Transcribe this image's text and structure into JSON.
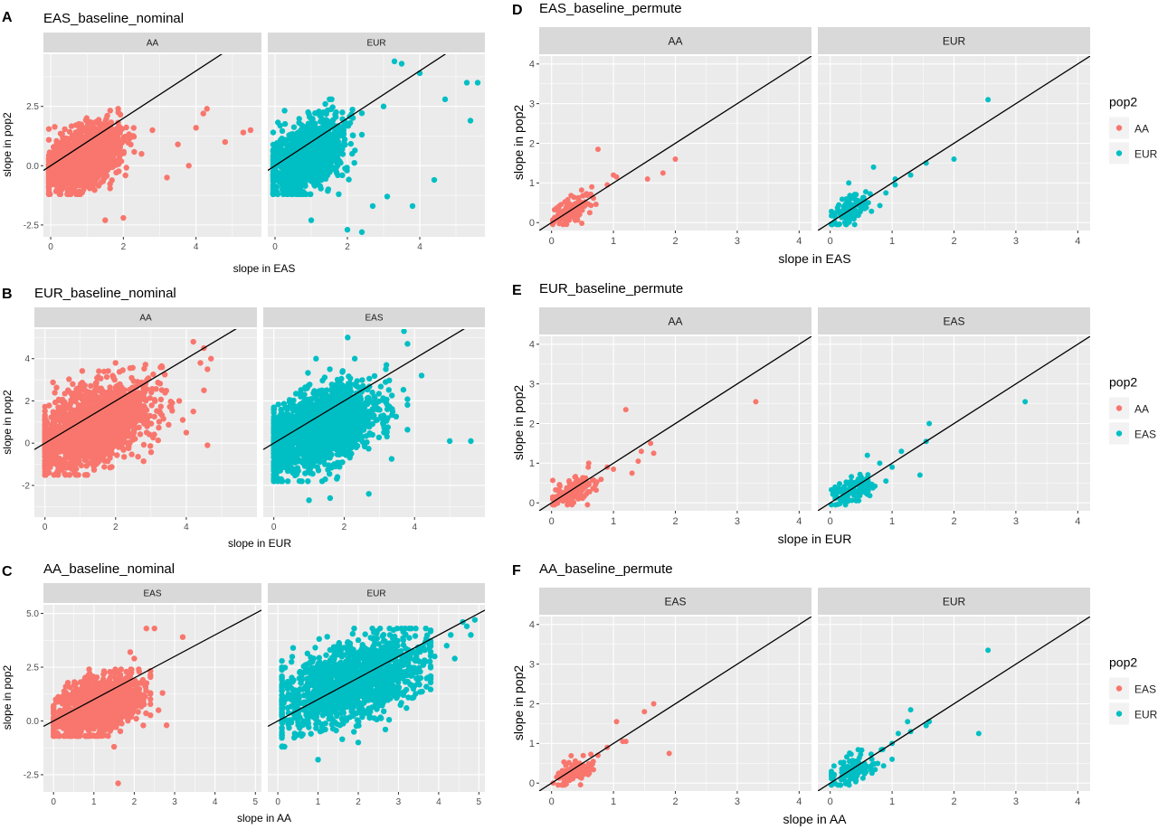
{
  "colors": {
    "red": "#F8766D",
    "teal": "#00BFC4",
    "panel_bg": "#EBEBEB",
    "strip_bg": "#D9D9D9",
    "grid": "#FFFFFF",
    "line": "#000000"
  },
  "chart_data": [
    {
      "id": "A",
      "tag": "A",
      "title": "EAS_baseline_nominal",
      "type": "scatter",
      "xlabel": "slope in EAS",
      "ylabel": "slope in pop2",
      "xlim": [
        -0.2,
        5.8
      ],
      "ylim": [
        -3.0,
        4.7
      ],
      "xticks": [
        {
          "v": 0,
          "t": "0"
        },
        {
          "v": 2,
          "t": "2"
        },
        {
          "v": 4,
          "t": "4"
        }
      ],
      "yticks": [
        {
          "v": -2.5,
          "t": "-2.5"
        },
        {
          "v": 0,
          "t": "0.0"
        },
        {
          "v": 2.5,
          "t": "2.5"
        }
      ],
      "grid": true,
      "reference_line": "y = x",
      "facets": [
        {
          "label": "AA",
          "color": "red",
          "cloud": {
            "cx": 0.9,
            "cy": 0.3,
            "sx": 0.5,
            "sy": 0.7,
            "xmin": -0.05,
            "xmax": 2.3,
            "ymin": -1.2,
            "ymax": 2.4
          },
          "outliers": [
            [
              4.3,
              2.4
            ],
            [
              4.2,
              2.2
            ],
            [
              4.0,
              1.6
            ],
            [
              5.3,
              1.4
            ],
            [
              5.5,
              1.5
            ],
            [
              2.0,
              -2.2
            ],
            [
              4.8,
              1.0
            ],
            [
              3.5,
              0.9
            ],
            [
              1.5,
              -2.3
            ],
            [
              2.5,
              0.5
            ],
            [
              3.2,
              -0.5
            ],
            [
              2.8,
              1.5
            ],
            [
              3.8,
              0.0
            ]
          ]
        },
        {
          "label": "EUR",
          "color": "teal",
          "cloud": {
            "cx": 0.9,
            "cy": 0.4,
            "sx": 0.5,
            "sy": 0.8,
            "xmin": -0.05,
            "xmax": 2.4,
            "ymin": -1.2,
            "ymax": 2.8
          },
          "outliers": [
            [
              3.3,
              4.4
            ],
            [
              3.5,
              4.3
            ],
            [
              4.0,
              3.9
            ],
            [
              5.3,
              3.5
            ],
            [
              5.6,
              3.5
            ],
            [
              4.4,
              -0.6
            ],
            [
              2.0,
              -2.7
            ],
            [
              2.4,
              -2.8
            ],
            [
              3.1,
              -1.3
            ],
            [
              3.8,
              -1.7
            ],
            [
              5.4,
              1.9
            ],
            [
              4.7,
              2.8
            ],
            [
              3.0,
              2.5
            ],
            [
              2.7,
              -1.7
            ],
            [
              1.0,
              -2.3
            ]
          ]
        }
      ]
    },
    {
      "id": "B",
      "tag": "B",
      "title": "EUR_baseline_nominal",
      "type": "scatter",
      "xlabel": "slope in EUR",
      "ylabel": "slope in pop2",
      "xlim": [
        -0.3,
        6.0
      ],
      "ylim": [
        -3.5,
        5.4
      ],
      "xticks": [
        {
          "v": 0,
          "t": "0"
        },
        {
          "v": 2,
          "t": "2"
        },
        {
          "v": 4,
          "t": "4"
        }
      ],
      "yticks": [
        {
          "v": -2,
          "t": "-2"
        },
        {
          "v": 0,
          "t": "0"
        },
        {
          "v": 2,
          "t": "2"
        },
        {
          "v": 4,
          "t": "4"
        }
      ],
      "grid": true,
      "reference_line": "y = x",
      "facets": [
        {
          "label": "AA",
          "color": "red",
          "cloud": {
            "cx": 1.3,
            "cy": 0.8,
            "sx": 0.8,
            "sy": 1.0,
            "xmin": 0.0,
            "xmax": 3.6,
            "ymin": -1.5,
            "ymax": 3.8
          },
          "outliers": [
            [
              4.2,
              4.8
            ],
            [
              4.5,
              4.5
            ],
            [
              4.7,
              4.0
            ],
            [
              4.6,
              3.5
            ],
            [
              4.4,
              3.8
            ],
            [
              4.6,
              -0.1
            ],
            [
              4.0,
              0.5
            ],
            [
              3.8,
              2.0
            ],
            [
              4.2,
              1.5
            ],
            [
              4.5,
              2.5
            ],
            [
              3.9,
              1.1
            ]
          ]
        },
        {
          "label": "EAS",
          "color": "teal",
          "cloud": {
            "cx": 1.3,
            "cy": 0.7,
            "sx": 0.8,
            "sy": 1.0,
            "xmin": 0.0,
            "xmax": 3.8,
            "ymin": -1.8,
            "ymax": 3.5
          },
          "outliers": [
            [
              3.7,
              5.3
            ],
            [
              3.8,
              4.7
            ],
            [
              2.1,
              5.0
            ],
            [
              5.0,
              0.1
            ],
            [
              5.6,
              0.1
            ],
            [
              1.6,
              -2.6
            ],
            [
              2.7,
              -2.4
            ],
            [
              1.0,
              -2.7
            ],
            [
              4.2,
              3.2
            ],
            [
              2.3,
              4.0
            ],
            [
              3.2,
              3.7
            ],
            [
              1.2,
              4.0
            ]
          ]
        }
      ]
    },
    {
      "id": "C",
      "tag": "C",
      "title": "AA_baseline_nominal",
      "type": "scatter",
      "xlabel": "slope in AA",
      "ylabel": "slope in pop2",
      "xlim": [
        -0.25,
        5.15
      ],
      "ylim": [
        -3.3,
        5.4
      ],
      "xticks": [
        {
          "v": 0,
          "t": "0"
        },
        {
          "v": 1,
          "t": "1"
        },
        {
          "v": 2,
          "t": "2"
        },
        {
          "v": 3,
          "t": "3"
        },
        {
          "v": 4,
          "t": "4"
        },
        {
          "v": 5,
          "t": "5"
        }
      ],
      "yticks": [
        {
          "v": -2.5,
          "t": "-2.5"
        },
        {
          "v": 0,
          "t": "0.0"
        },
        {
          "v": 2.5,
          "t": "2.5"
        },
        {
          "v": 5,
          "t": "5.0"
        }
      ],
      "grid": true,
      "reference_line": "y = x",
      "facets": [
        {
          "label": "EAS",
          "color": "red",
          "cloud": {
            "cx": 1.1,
            "cy": 0.7,
            "sx": 0.5,
            "sy": 0.7,
            "xmin": 0.0,
            "xmax": 2.4,
            "ymin": -0.7,
            "ymax": 2.4
          },
          "outliers": [
            [
              2.3,
              4.3
            ],
            [
              2.5,
              4.3
            ],
            [
              3.2,
              3.9
            ],
            [
              1.6,
              -2.9
            ],
            [
              2.2,
              1.8
            ],
            [
              2.6,
              0.5
            ],
            [
              2.8,
              -0.2
            ],
            [
              1.5,
              -1.2
            ],
            [
              2.7,
              1.3
            ],
            [
              1.9,
              3.2
            ],
            [
              2.0,
              2.9
            ]
          ]
        },
        {
          "label": "EUR",
          "color": "teal",
          "cloud": {
            "cx": 1.8,
            "cy": 1.8,
            "sx": 0.9,
            "sy": 1.1,
            "xmin": 0.1,
            "xmax": 3.8,
            "ymin": -1.2,
            "ymax": 4.3
          },
          "outliers": [
            [
              4.6,
              4.6
            ],
            [
              4.7,
              4.4
            ],
            [
              4.8,
              4.0
            ],
            [
              4.9,
              4.7
            ],
            [
              4.3,
              4.0
            ],
            [
              1.0,
              -1.8
            ],
            [
              2.0,
              -1.0
            ],
            [
              3.2,
              0.6
            ],
            [
              4.4,
              2.9
            ],
            [
              3.9,
              3.0
            ],
            [
              4.2,
              3.5
            ]
          ]
        }
      ]
    },
    {
      "id": "D",
      "tag": "D",
      "title": "EAS_baseline_permute",
      "type": "scatter",
      "xlabel": "slope in EAS",
      "ylabel": "slope in pop2",
      "xlim": [
        -0.2,
        4.2
      ],
      "ylim": [
        -0.2,
        4.2
      ],
      "xticks": [
        {
          "v": 0,
          "t": "0"
        },
        {
          "v": 1,
          "t": "1"
        },
        {
          "v": 2,
          "t": "2"
        },
        {
          "v": 3,
          "t": "3"
        },
        {
          "v": 4,
          "t": "4"
        }
      ],
      "yticks": [
        {
          "v": 0,
          "t": "0"
        },
        {
          "v": 1,
          "t": "1"
        },
        {
          "v": 2,
          "t": "2"
        },
        {
          "v": 3,
          "t": "3"
        },
        {
          "v": 4,
          "t": "4"
        }
      ],
      "grid": true,
      "reference_line": "y = x",
      "legend": {
        "title": "pop2",
        "items": [
          {
            "label": "AA",
            "color": "red"
          },
          {
            "label": "EUR",
            "color": "teal"
          }
        ],
        "position": "right"
      },
      "facets": [
        {
          "label": "AA",
          "color": "red",
          "cloud": {
            "cx": 0.3,
            "cy": 0.3,
            "sx": 0.15,
            "sy": 0.18,
            "xmin": 0.02,
            "xmax": 0.8,
            "ymin": -0.05,
            "ymax": 0.9
          },
          "outliers": [
            [
              0.75,
              1.85
            ],
            [
              1.0,
              1.2
            ],
            [
              1.05,
              1.15
            ],
            [
              1.55,
              1.1
            ],
            [
              1.8,
              1.25
            ],
            [
              2.0,
              1.6
            ],
            [
              0.65,
              0.9
            ],
            [
              0.9,
              0.95
            ]
          ]
        },
        {
          "label": "EUR",
          "color": "teal",
          "cloud": {
            "cx": 0.3,
            "cy": 0.3,
            "sx": 0.18,
            "sy": 0.2,
            "xmin": 0.02,
            "xmax": 0.9,
            "ymin": -0.05,
            "ymax": 1.0
          },
          "outliers": [
            [
              2.55,
              3.1
            ],
            [
              2.0,
              1.6
            ],
            [
              1.55,
              1.5
            ],
            [
              1.3,
              1.2
            ],
            [
              1.05,
              1.1
            ],
            [
              1.05,
              0.95
            ],
            [
              0.3,
              1.0
            ],
            [
              0.7,
              1.4
            ],
            [
              0.9,
              0.75
            ]
          ]
        }
      ]
    },
    {
      "id": "E",
      "tag": "E",
      "title": "EUR_baseline_permute",
      "type": "scatter",
      "xlabel": "slope in EUR",
      "ylabel": "slope in pop2",
      "xlim": [
        -0.2,
        4.2
      ],
      "ylim": [
        -0.2,
        4.2
      ],
      "xticks": [
        {
          "v": 0,
          "t": "0"
        },
        {
          "v": 1,
          "t": "1"
        },
        {
          "v": 2,
          "t": "2"
        },
        {
          "v": 3,
          "t": "3"
        },
        {
          "v": 4,
          "t": "4"
        }
      ],
      "yticks": [
        {
          "v": 0,
          "t": "0"
        },
        {
          "v": 1,
          "t": "1"
        },
        {
          "v": 2,
          "t": "2"
        },
        {
          "v": 3,
          "t": "3"
        },
        {
          "v": 4,
          "t": "4"
        }
      ],
      "grid": true,
      "reference_line": "y = x",
      "legend": {
        "title": "pop2",
        "items": [
          {
            "label": "AA",
            "color": "red"
          },
          {
            "label": "EAS",
            "color": "teal"
          }
        ],
        "position": "right"
      },
      "facets": [
        {
          "label": "AA",
          "color": "red",
          "cloud": {
            "cx": 0.35,
            "cy": 0.3,
            "sx": 0.18,
            "sy": 0.2,
            "xmin": 0.02,
            "xmax": 0.8,
            "ymin": -0.05,
            "ymax": 0.9
          },
          "outliers": [
            [
              1.2,
              2.35
            ],
            [
              3.3,
              2.55
            ],
            [
              1.6,
              1.5
            ],
            [
              1.65,
              1.25
            ],
            [
              1.45,
              1.3
            ],
            [
              1.4,
              1.05
            ],
            [
              0.9,
              0.9
            ],
            [
              1.0,
              0.85
            ],
            [
              1.3,
              0.75
            ],
            [
              0.6,
              1.0
            ]
          ]
        },
        {
          "label": "EAS",
          "color": "teal",
          "cloud": {
            "cx": 0.35,
            "cy": 0.3,
            "sx": 0.18,
            "sy": 0.18,
            "xmin": 0.02,
            "xmax": 0.9,
            "ymin": -0.05,
            "ymax": 0.9
          },
          "outliers": [
            [
              3.15,
              2.55
            ],
            [
              1.6,
              2.0
            ],
            [
              1.55,
              1.55
            ],
            [
              1.15,
              1.3
            ],
            [
              1.45,
              0.7
            ],
            [
              1.0,
              0.9
            ],
            [
              0.8,
              1.0
            ],
            [
              0.6,
              1.2
            ],
            [
              0.9,
              0.55
            ]
          ]
        }
      ]
    },
    {
      "id": "F",
      "tag": "F",
      "title": "AA_baseline_permute",
      "type": "scatter",
      "xlabel": "slope in AA",
      "ylabel": "slope in pop2",
      "xlim": [
        -0.2,
        4.2
      ],
      "ylim": [
        -0.2,
        4.2
      ],
      "xticks": [
        {
          "v": 0,
          "t": "0"
        },
        {
          "v": 1,
          "t": "1"
        },
        {
          "v": 2,
          "t": "2"
        },
        {
          "v": 3,
          "t": "3"
        },
        {
          "v": 4,
          "t": "4"
        }
      ],
      "yticks": [
        {
          "v": 0,
          "t": "0"
        },
        {
          "v": 1,
          "t": "1"
        },
        {
          "v": 2,
          "t": "2"
        },
        {
          "v": 3,
          "t": "3"
        },
        {
          "v": 4,
          "t": "4"
        }
      ],
      "grid": true,
      "reference_line": "y = x",
      "legend": {
        "title": "pop2",
        "items": [
          {
            "label": "EAS",
            "color": "red"
          },
          {
            "label": "EUR",
            "color": "teal"
          }
        ],
        "position": "right"
      },
      "facets": [
        {
          "label": "EAS",
          "color": "red",
          "cloud": {
            "cx": 0.35,
            "cy": 0.3,
            "sx": 0.15,
            "sy": 0.18,
            "xmin": 0.02,
            "xmax": 0.8,
            "ymin": -0.05,
            "ymax": 0.8
          },
          "outliers": [
            [
              1.65,
              2.0
            ],
            [
              1.5,
              1.8
            ],
            [
              1.05,
              1.55
            ],
            [
              1.15,
              1.05
            ],
            [
              1.2,
              1.05
            ],
            [
              1.9,
              0.75
            ],
            [
              0.9,
              0.9
            ],
            [
              0.75,
              0.7
            ]
          ]
        },
        {
          "label": "EUR",
          "color": "teal",
          "cloud": {
            "cx": 0.35,
            "cy": 0.3,
            "sx": 0.2,
            "sy": 0.2,
            "xmin": 0.02,
            "xmax": 0.9,
            "ymin": -0.05,
            "ymax": 1.0
          },
          "outliers": [
            [
              2.55,
              3.35
            ],
            [
              2.4,
              1.25
            ],
            [
              1.6,
              1.55
            ],
            [
              1.55,
              1.45
            ],
            [
              1.3,
              1.85
            ],
            [
              1.25,
              1.55
            ],
            [
              1.3,
              1.3
            ],
            [
              1.1,
              1.25
            ],
            [
              1.0,
              1.0
            ],
            [
              0.85,
              0.85
            ],
            [
              1.0,
              0.6
            ]
          ]
        }
      ]
    }
  ]
}
